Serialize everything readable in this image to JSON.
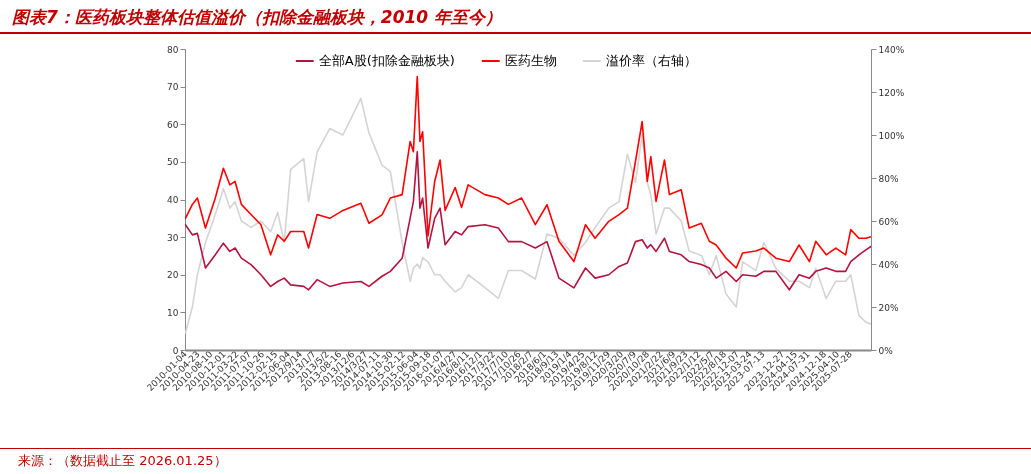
{
  "chart_data": {
    "type": "line",
    "title": "图表7：医药板块整体估值溢价（扣除金融板块，2010 年至今）",
    "annotations": [
      "来源：（数据截止至 2026.01.25）"
    ],
    "x": [
      "2010-01-08",
      "2010-03-08",
      "2010-04-20",
      "2010-06-28",
      "2010-09-20",
      "2010-11-28",
      "2011-01-22",
      "2011-03-08",
      "2011-05-01",
      "2011-07-22",
      "2011-10-15",
      "2012-01-06",
      "2012-03-06",
      "2012-05-01",
      "2012-06-25",
      "2012-10-15",
      "2012-11-25",
      "2013-02-06",
      "2013-05-25",
      "2013-09-15",
      "2014-02-15",
      "2014-04-25",
      "2014-08-15",
      "2014-10-25",
      "2015-02-03",
      "2015-04-12",
      "2015-05-10",
      "2015-06-12",
      "2015-07-05",
      "2015-07-28",
      "2015-09-12",
      "2015-11-08",
      "2015-12-24",
      "2016-02-05",
      "2016-05-01",
      "2016-06-25",
      "2016-08-20",
      "2017-01-10",
      "2017-05-05",
      "2017-07-30",
      "2017-11-20",
      "2018-03-17",
      "2018-06-25",
      "2018-10-05",
      "2019-02-10",
      "2019-05-20",
      "2019-08-10",
      "2019-12-05",
      "2020-03-01",
      "2020-05-12",
      "2020-07-20",
      "2020-09-15",
      "2020-10-29",
      "2020-11-28",
      "2021-01-12",
      "2021-03-25",
      "2021-05-06",
      "2021-08-15",
      "2021-10-22",
      "2022-02-03",
      "2022-04-12",
      "2022-06-10",
      "2022-09-02",
      "2022-11-28",
      "2023-01-22",
      "2023-05-15",
      "2023-07-22",
      "2023-11-02",
      "2024-02-25",
      "2024-05-18",
      "2024-08-15",
      "2024-10-08",
      "2025-01-05",
      "2025-03-28",
      "2025-06-20",
      "2025-08-03",
      "2025-10-12",
      "2025-12-10",
      "2026-01-23"
    ],
    "series": [
      {
        "name": "全部A股(扣除金融板块)",
        "color": "#b5123e",
        "values": [
          33.3,
          30.6,
          31,
          21.8,
          25.3,
          28.4,
          26.2,
          27.1,
          24.4,
          22.7,
          20,
          16.9,
          18.2,
          19.1,
          17.3,
          16.9,
          16,
          18.7,
          16.9,
          17.8,
          18.2,
          16.9,
          19.6,
          20.9,
          24.4,
          35,
          39.5,
          52.7,
          37.7,
          40.4,
          27.1,
          35,
          37.7,
          28,
          31.5,
          30.6,
          32.8,
          33.3,
          32.4,
          28.8,
          28.8,
          27.1,
          28.8,
          19.1,
          16.5,
          21.8,
          19.1,
          20,
          22.2,
          23.1,
          28.8,
          29.3,
          27.1,
          28,
          26.2,
          29.7,
          26.2,
          25.3,
          23.5,
          22.7,
          21.8,
          19.1,
          20.9,
          18.2,
          20,
          19.6,
          20.9,
          20.9,
          16,
          20,
          19.1,
          20.9,
          21.8,
          20.9,
          20.9,
          23.5,
          25.3,
          26.6,
          27.5
        ]
      },
      {
        "name": "医药生物",
        "color": "#ff0000",
        "values": [
          35,
          38.7,
          40.4,
          32.4,
          40.4,
          48.3,
          43.9,
          44.8,
          38.7,
          36,
          33.3,
          25.3,
          30.6,
          28.9,
          31.5,
          31.5,
          27.1,
          36,
          35,
          37.1,
          39,
          33.7,
          35.9,
          40.4,
          41.3,
          55.4,
          52.7,
          72.7,
          55.4,
          58,
          30.3,
          44.8,
          50.5,
          37.1,
          43.2,
          37.9,
          43.9,
          41.3,
          40.4,
          38.7,
          40.4,
          33.3,
          38.6,
          28.9,
          23.5,
          33.3,
          29.7,
          34.2,
          36,
          37.7,
          50.1,
          60.7,
          44.8,
          51.4,
          39.5,
          50.5,
          41.3,
          42.6,
          32.4,
          33.7,
          28.9,
          27.9,
          24.4,
          21.8,
          25.8,
          26.3,
          27.1,
          24.4,
          23.5,
          27.9,
          23.5,
          28.9,
          25.3,
          27.1,
          25.3,
          32,
          29.7,
          29.7,
          30.1
        ]
      },
      {
        "name": "溢价率（右轴）",
        "color": "#d4d4d4",
        "axis": "y2",
        "values": [
          8,
          20,
          35,
          50,
          63,
          75,
          66,
          69,
          60,
          57,
          60,
          55,
          64,
          50,
          84,
          89,
          69,
          92,
          103,
          100,
          117,
          101,
          86,
          83,
          50,
          32,
          38,
          40,
          38,
          43,
          41,
          35,
          35,
          32,
          27,
          29,
          35,
          29,
          24,
          37,
          37,
          33,
          54,
          52,
          44,
          50,
          57,
          66,
          69,
          91,
          78,
          100,
          78,
          72,
          54,
          66,
          66,
          60,
          46,
          44,
          35,
          44,
          26,
          20,
          41,
          37,
          50,
          38,
          32,
          32,
          29,
          38,
          24,
          32,
          32,
          35,
          16,
          13,
          12
        ]
      }
    ],
    "xlim": [
      "2010-01-04",
      "2026-01-23"
    ],
    "xticks": [
      {
        "value": "2010-01-04",
        "label": "2010-01-04"
      },
      {
        "value": "2010-04-23",
        "label": "2010-04-23"
      },
      {
        "value": "2010-08-10",
        "label": "2010-08-10"
      },
      {
        "value": "2010-12-01",
        "label": "2010-12-01"
      },
      {
        "value": "2011-03-22",
        "label": "2011-03-22"
      },
      {
        "value": "2011-07-07",
        "label": "2011-07-07"
      },
      {
        "value": "2011-10-26",
        "label": "2011-10-26"
      },
      {
        "value": "2012-02-15",
        "label": "2012-02-15"
      },
      {
        "value": "2012-06-04",
        "label": "2012-06-04"
      },
      {
        "value": "2012-09-14",
        "label": "2012/9/14"
      },
      {
        "value": "2013-01-07",
        "label": "2013/1/7"
      },
      {
        "value": "2013-05-02",
        "label": "2013/5/2"
      },
      {
        "value": "2013-08-16",
        "label": "2013-08-16"
      },
      {
        "value": "2013-12-06",
        "label": "2013/12/6"
      },
      {
        "value": "2014-03-27",
        "label": "2014/3/27"
      },
      {
        "value": "2014-07-11",
        "label": "2014-07-11"
      },
      {
        "value": "2014-10-30",
        "label": "2014-10-30"
      },
      {
        "value": "2015-02-12",
        "label": "2015-02-12"
      },
      {
        "value": "2015-06-04",
        "label": "2015-06-04"
      },
      {
        "value": "2015-09-18",
        "label": "2015-09-18"
      },
      {
        "value": "2016-01-07",
        "label": "2016-01-07"
      },
      {
        "value": "2016-04-27",
        "label": "2016/4/27"
      },
      {
        "value": "2016-08-11",
        "label": "2016/8/11"
      },
      {
        "value": "2016-12-01",
        "label": "2016/12/1"
      },
      {
        "value": "2017-03-22",
        "label": "2017/3/22"
      },
      {
        "value": "2017-07-10",
        "label": "2017/7/10"
      },
      {
        "value": "2017-10-26",
        "label": "2017/10/26"
      },
      {
        "value": "2018-02-07",
        "label": "2018/2/7"
      },
      {
        "value": "2018-06-01",
        "label": "2018/6/1"
      },
      {
        "value": "2018-09-13",
        "label": "2018/9/13"
      },
      {
        "value": "2019-01-04",
        "label": "2019/1/4"
      },
      {
        "value": "2019-04-25",
        "label": "2019/4/25"
      },
      {
        "value": "2019-08-12",
        "label": "2019/8/12"
      },
      {
        "value": "2019-11-29",
        "label": "2019/11/29"
      },
      {
        "value": "2020-03-20",
        "label": "2020/3/20"
      },
      {
        "value": "2020-07-09",
        "label": "2020/7/9"
      },
      {
        "value": "2020-10-28",
        "label": "2020/10/28"
      },
      {
        "value": "2021-02-22",
        "label": "2021/2/22"
      },
      {
        "value": "2021-06-09",
        "label": "2021/6/9"
      },
      {
        "value": "2021-09-23",
        "label": "2021/9/23"
      },
      {
        "value": "2022-01-12",
        "label": "2022/1/12"
      },
      {
        "value": "2022-05-07",
        "label": "2022/5/7"
      },
      {
        "value": "2022-08-18",
        "label": "2022/8/18"
      },
      {
        "value": "2022-12-07",
        "label": "2022-12-07"
      },
      {
        "value": "2023-03-24",
        "label": "2023-03-24"
      },
      {
        "value": "2023-07-13",
        "label": "2023-07-13"
      },
      {
        "value": "2023-12-27",
        "label": "2023-12-27"
      },
      {
        "value": "2024-04-15",
        "label": "2024-04-15"
      },
      {
        "value": "2024-07-31",
        "label": "2024-07-31"
      },
      {
        "value": "2024-12-18",
        "label": "2024-12-18"
      },
      {
        "value": "2025-04-10",
        "label": "2025-04-10"
      },
      {
        "value": "2025-07-28",
        "label": "2025-07-28"
      }
    ],
    "ylim": [
      0,
      80
    ],
    "yticks": [
      0,
      10,
      20,
      30,
      40,
      50,
      60,
      70,
      80
    ],
    "y2lim": [
      0,
      140
    ],
    "y2ticks": [
      {
        "value": 0,
        "label": "0%"
      },
      {
        "value": 20,
        "label": "20%"
      },
      {
        "value": 40,
        "label": "40%"
      },
      {
        "value": 60,
        "label": "60%"
      },
      {
        "value": 80,
        "label": "80%"
      },
      {
        "value": 100,
        "label": "100%"
      },
      {
        "value": 120,
        "label": "120%"
      },
      {
        "value": 140,
        "label": "140%"
      }
    ],
    "legend": "top",
    "grid": false,
    "marker": "none",
    "line_style": "solid"
  }
}
